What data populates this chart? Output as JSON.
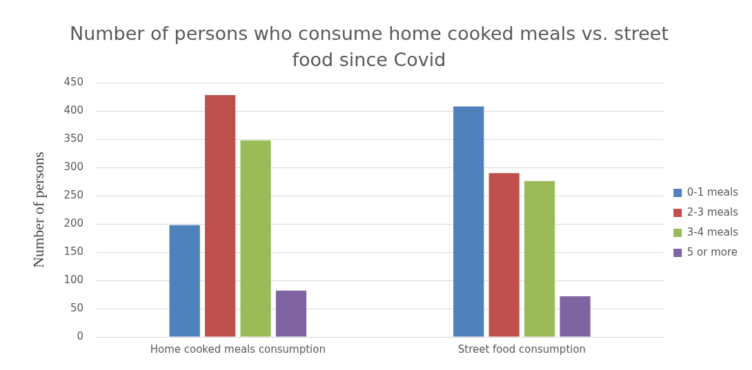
{
  "chart_data": {
    "type": "bar",
    "title": "Number of persons who consume home cooked meals vs. street food since Covid",
    "ylabel": "Number of persons",
    "categories": [
      "Home cooked meals consumption",
      "Street food consumption"
    ],
    "series": [
      {
        "name": "0-1 meals",
        "color": "#4f81bd",
        "values": [
          198,
          408
        ]
      },
      {
        "name": "2-3 meals",
        "color": "#c0504d",
        "values": [
          428,
          290
        ]
      },
      {
        "name": "3-4 meals",
        "color": "#9bbb59",
        "values": [
          348,
          276
        ]
      },
      {
        "name": "5 or more",
        "color": "#8064a2",
        "values": [
          82,
          72
        ]
      }
    ],
    "ylim": [
      0,
      450
    ],
    "yticks": [
      0,
      50,
      100,
      150,
      200,
      250,
      300,
      350,
      400,
      450
    ],
    "grid": "y",
    "legend": "right"
  }
}
